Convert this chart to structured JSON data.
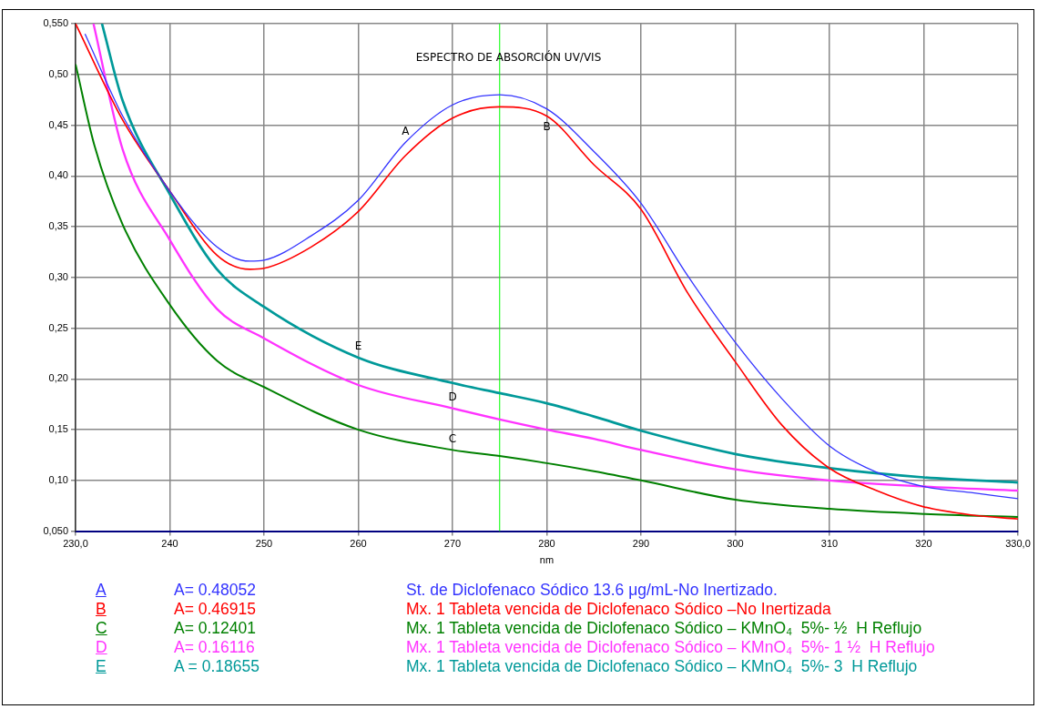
{
  "chart_data": {
    "type": "line",
    "title": "ESPECTRO DE ABSORCIÓN UV/VIS",
    "xlabel": "nm",
    "xlim": [
      230,
      330
    ],
    "xticks": [
      {
        "value": 230,
        "label": "230,0"
      },
      240,
      250,
      260,
      270,
      280,
      290,
      300,
      310,
      320,
      {
        "value": 330,
        "label": "330,0"
      }
    ],
    "ylim": [
      0.05,
      0.55
    ],
    "yticks": [
      {
        "value": 0.05,
        "label": "0,050"
      },
      {
        "value": 0.1,
        "label": "0,10"
      },
      {
        "value": 0.15,
        "label": "0,15"
      },
      {
        "value": 0.2,
        "label": "0,20"
      },
      {
        "value": 0.25,
        "label": "0,25"
      },
      {
        "value": 0.3,
        "label": "0,30"
      },
      {
        "value": 0.35,
        "label": "0,35"
      },
      {
        "value": 0.4,
        "label": "0,40"
      },
      {
        "value": 0.45,
        "label": "0,45"
      },
      {
        "value": 0.5,
        "label": "0,50"
      },
      {
        "value": 0.55,
        "label": "0,550"
      }
    ],
    "grid": true,
    "legend": "bottom",
    "marker": "none",
    "line_style": "solid",
    "ref_lines": [
      {
        "axis": "x",
        "value": 275,
        "color": "#00ff00"
      }
    ],
    "series": [
      {
        "name": "A",
        "color": "#3333ff",
        "x": [
          231,
          235,
          240,
          245,
          248.5,
          250,
          255,
          260,
          265,
          270,
          275,
          280,
          285,
          290,
          295,
          300,
          305,
          310,
          315,
          320,
          325,
          330
        ],
        "values": [
          0.54,
          0.459,
          0.385,
          0.33,
          0.316,
          0.317,
          0.341,
          0.376,
          0.433,
          0.47,
          0.48,
          0.466,
          0.424,
          0.373,
          0.301,
          0.236,
          0.18,
          0.134,
          0.108,
          0.094,
          0.088,
          0.082
        ]
      },
      {
        "name": "B",
        "color": "#ff0000",
        "x": [
          230,
          235,
          240,
          245,
          248.5,
          250,
          255,
          260,
          265,
          270,
          275,
          280,
          285,
          290,
          295,
          300,
          305,
          310,
          315,
          320,
          325,
          330
        ],
        "values": [
          0.55,
          0.455,
          0.385,
          0.322,
          0.308,
          0.309,
          0.33,
          0.365,
          0.42,
          0.457,
          0.468,
          0.459,
          0.411,
          0.367,
          0.284,
          0.217,
          0.154,
          0.112,
          0.09,
          0.074,
          0.066,
          0.062
        ]
      },
      {
        "name": "C",
        "color": "#008000",
        "x": [
          230,
          232,
          235,
          240,
          245,
          250,
          260,
          270,
          275,
          280,
          285,
          290,
          300,
          310,
          320,
          330
        ],
        "values": [
          0.51,
          0.43,
          0.352,
          0.273,
          0.218,
          0.192,
          0.15,
          0.13,
          0.124,
          0.117,
          0.109,
          0.1,
          0.081,
          0.072,
          0.067,
          0.064
        ]
      },
      {
        "name": "D",
        "color": "#ff33ff",
        "x": [
          231.9,
          235,
          240,
          245,
          250,
          260,
          270,
          275,
          280,
          285,
          290,
          300,
          310,
          320,
          330
        ],
        "values": [
          0.55,
          0.426,
          0.337,
          0.269,
          0.24,
          0.194,
          0.171,
          0.16,
          0.15,
          0.141,
          0.13,
          0.111,
          0.1,
          0.094,
          0.09
        ]
      },
      {
        "name": "E",
        "color": "#009999",
        "x": [
          232.8,
          235,
          240,
          245,
          250,
          260,
          270,
          275,
          280,
          285,
          290,
          300,
          310,
          320,
          330
        ],
        "values": [
          0.55,
          0.474,
          0.382,
          0.308,
          0.271,
          0.221,
          0.196,
          0.186,
          0.176,
          0.163,
          0.149,
          0.126,
          0.112,
          0.103,
          0.098
        ]
      }
    ],
    "annotations": [
      {
        "text": "A",
        "x": 265,
        "y": 0.433
      },
      {
        "text": "B",
        "x": 280,
        "y": 0.459
      },
      {
        "text": "C",
        "x": 270,
        "y": 0.13
      },
      {
        "text": "D",
        "x": 270,
        "y": 0.171
      },
      {
        "text": "E",
        "x": 260,
        "y": 0.221
      },
      "A= 0.48052",
      "St. de Diclofenaco Sódico 13.6 μg/mL-No Inertizado.",
      "A= 0.46915",
      "Mx. 1 Tableta vencida de Diclofenaco Sódico –No Inertizada",
      "A= 0.12401",
      "Mx. 1 Tableta vencida de Diclofenaco Sódico – KMnO₄  5%- ½  H Reflujo",
      "A= 0.16116",
      "Mx. 1 Tableta vencida de Diclofenaco Sódico – KMnO₄  5%- 1 ½  H Reflujo",
      "A = 0.18655",
      "Mx. 1 Tableta vencida de Diclofenaco Sódico – KMnO₄  5%- 3  H Reflujo"
    ]
  }
}
